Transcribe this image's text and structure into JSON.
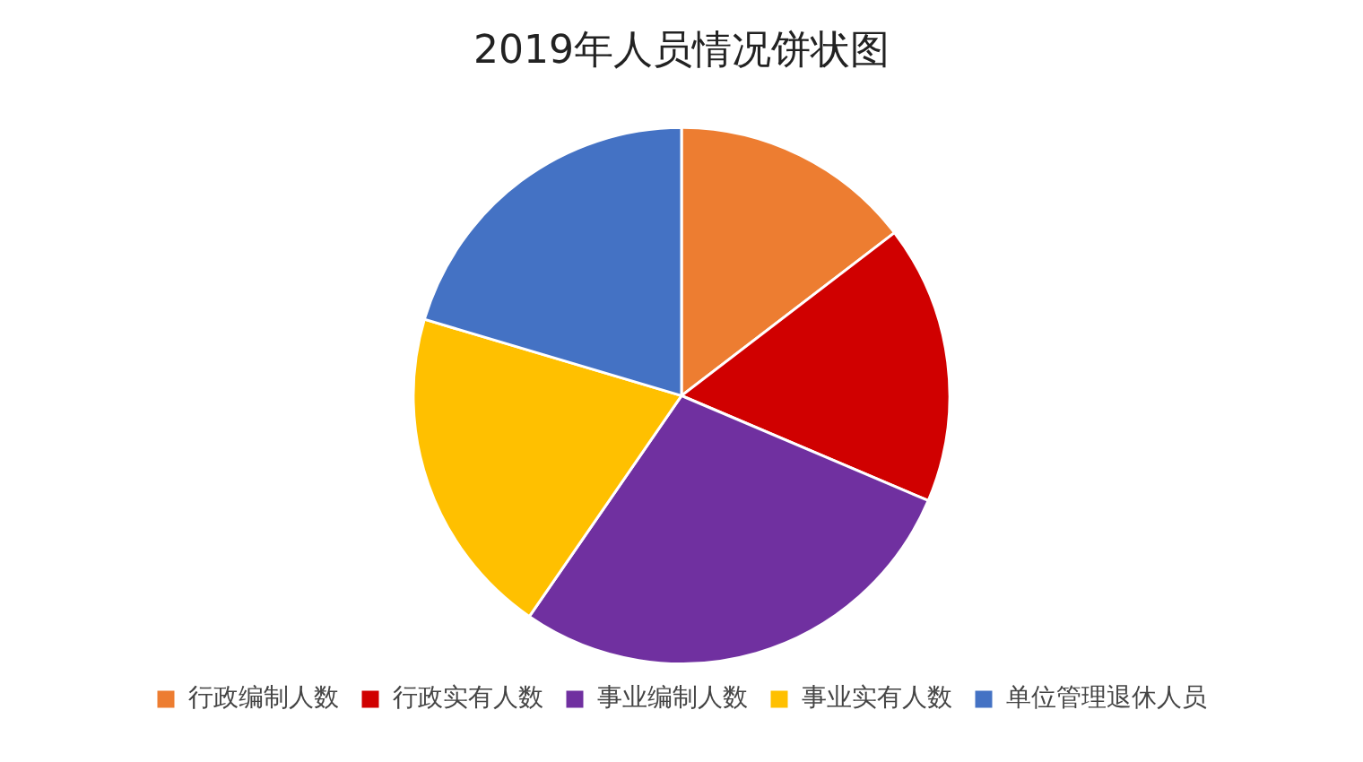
{
  "chart_data": {
    "type": "pie",
    "title": "2019年人员情况饼状图",
    "categories": [
      "行政编制人数",
      "行政实有人数",
      "事业编制人数",
      "事业实有人数",
      "单位管理退休人员"
    ],
    "values": [
      14.6,
      16.8,
      28.2,
      20,
      20.4
    ],
    "colors": [
      "#ed7d31",
      "#d00000",
      "#7030a0",
      "#ffc000",
      "#4472c4"
    ],
    "legend": "bottom"
  }
}
